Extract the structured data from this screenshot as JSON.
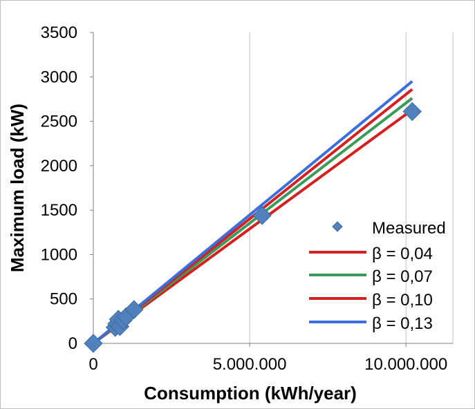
{
  "chart_data": {
    "type": "scatter",
    "title": "",
    "xlabel": "Consumption (kWh/year)",
    "ylabel": "Maximum load (kW)",
    "xlim": [
      0,
      11500000
    ],
    "ylim": [
      0,
      3500
    ],
    "x_ticks": [
      0,
      5000000,
      10000000
    ],
    "x_tick_labels": [
      "0",
      "5.000.000",
      "10.000.000"
    ],
    "y_ticks": [
      0,
      500,
      1000,
      1500,
      2000,
      2500,
      3000,
      3500
    ],
    "y_tick_labels": [
      "0",
      "500",
      "1000",
      "1500",
      "2000",
      "2500",
      "3000",
      "3500"
    ],
    "grid": "vertical",
    "legend_position": "right",
    "series": [
      {
        "name": "Measured",
        "kind": "marker",
        "color": "#4F81BD",
        "points": [
          {
            "x": 0,
            "y": 0
          },
          {
            "x": 700000,
            "y": 180
          },
          {
            "x": 750000,
            "y": 220
          },
          {
            "x": 800000,
            "y": 270
          },
          {
            "x": 850000,
            "y": 190
          },
          {
            "x": 950000,
            "y": 260
          },
          {
            "x": 1050000,
            "y": 300
          },
          {
            "x": 1300000,
            "y": 380
          },
          {
            "x": 5400000,
            "y": 1440
          },
          {
            "x": 10200000,
            "y": 2610
          }
        ]
      },
      {
        "name": "β = 0,04",
        "kind": "line",
        "color": "#D81F1F",
        "points": [
          {
            "x": 0,
            "y": 0
          },
          {
            "x": 10200000,
            "y": 2630
          }
        ]
      },
      {
        "name": "β = 0,07",
        "kind": "line",
        "color": "#3A9B5A",
        "points": [
          {
            "x": 0,
            "y": 0
          },
          {
            "x": 10200000,
            "y": 2760
          }
        ]
      },
      {
        "name": "β = 0,10",
        "kind": "line",
        "color": "#D81F1F",
        "points": [
          {
            "x": 0,
            "y": 0
          },
          {
            "x": 10200000,
            "y": 2860
          }
        ]
      },
      {
        "name": "β = 0,13",
        "kind": "line",
        "color": "#3A6FE0",
        "points": [
          {
            "x": 0,
            "y": 0
          },
          {
            "x": 10200000,
            "y": 2950
          }
        ]
      }
    ]
  }
}
